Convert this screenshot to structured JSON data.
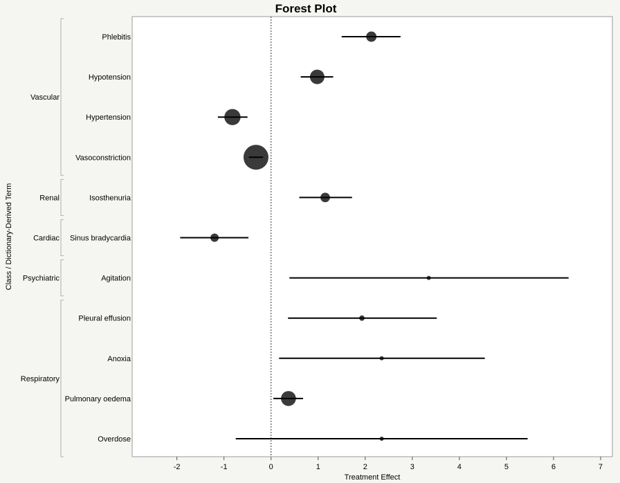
{
  "chart_data": {
    "type": "forest",
    "title": "Forest Plot",
    "xlabel": "Treatment Effect",
    "ylabel": "Class / Dictionary-Derived Term",
    "xlim": [
      -2.95,
      7.25
    ],
    "xticks": [
      -2,
      -1,
      0,
      1,
      2,
      3,
      4,
      5,
      6,
      7
    ],
    "reference_line": 0,
    "grid": false,
    "classes": [
      {
        "name": "Vascular",
        "terms": [
          "Phlebitis",
          "Hypotension",
          "Hypertension",
          "Vasoconstriction"
        ]
      },
      {
        "name": "Renal",
        "terms": [
          "Isosthenuria"
        ]
      },
      {
        "name": "Cardiac",
        "terms": [
          "Sinus bradycardia"
        ]
      },
      {
        "name": "Psychiatric",
        "terms": [
          "Agitation"
        ]
      },
      {
        "name": "Respiratory",
        "terms": [
          "Pleural effusion",
          "Anoxia",
          "Pulmonary oedema",
          "Overdose"
        ]
      }
    ],
    "rows": [
      {
        "term": "Phlebitis",
        "estimate": 2.13,
        "lower": 1.5,
        "upper": 2.75,
        "weight": 0.3
      },
      {
        "term": "Hypotension",
        "estimate": 0.98,
        "lower": 0.63,
        "upper": 1.32,
        "weight": 0.5
      },
      {
        "term": "Hypertension",
        "estimate": -0.82,
        "lower": -1.13,
        "upper": -0.5,
        "weight": 0.58
      },
      {
        "term": "Vasoconstriction",
        "estimate": -0.32,
        "lower": -0.47,
        "upper": -0.17,
        "weight": 1.0
      },
      {
        "term": "Isosthenuria",
        "estimate": 1.15,
        "lower": 0.6,
        "upper": 1.72,
        "weight": 0.26
      },
      {
        "term": "Sinus bradycardia",
        "estimate": -1.2,
        "lower": -1.93,
        "upper": -0.48,
        "weight": 0.2
      },
      {
        "term": "Agitation",
        "estimate": 3.35,
        "lower": 0.39,
        "upper": 6.32,
        "weight": 0.0
      },
      {
        "term": "Pleural effusion",
        "estimate": 1.93,
        "lower": 0.36,
        "upper": 3.52,
        "weight": 0.06
      },
      {
        "term": "Anoxia",
        "estimate": 2.35,
        "lower": 0.17,
        "upper": 4.54,
        "weight": 0.0
      },
      {
        "term": "Pulmonary oedema",
        "estimate": 0.37,
        "lower": 0.05,
        "upper": 0.68,
        "weight": 0.52
      },
      {
        "term": "Overdose",
        "estimate": 2.35,
        "lower": -0.75,
        "upper": 5.45,
        "weight": 0.0
      }
    ]
  }
}
